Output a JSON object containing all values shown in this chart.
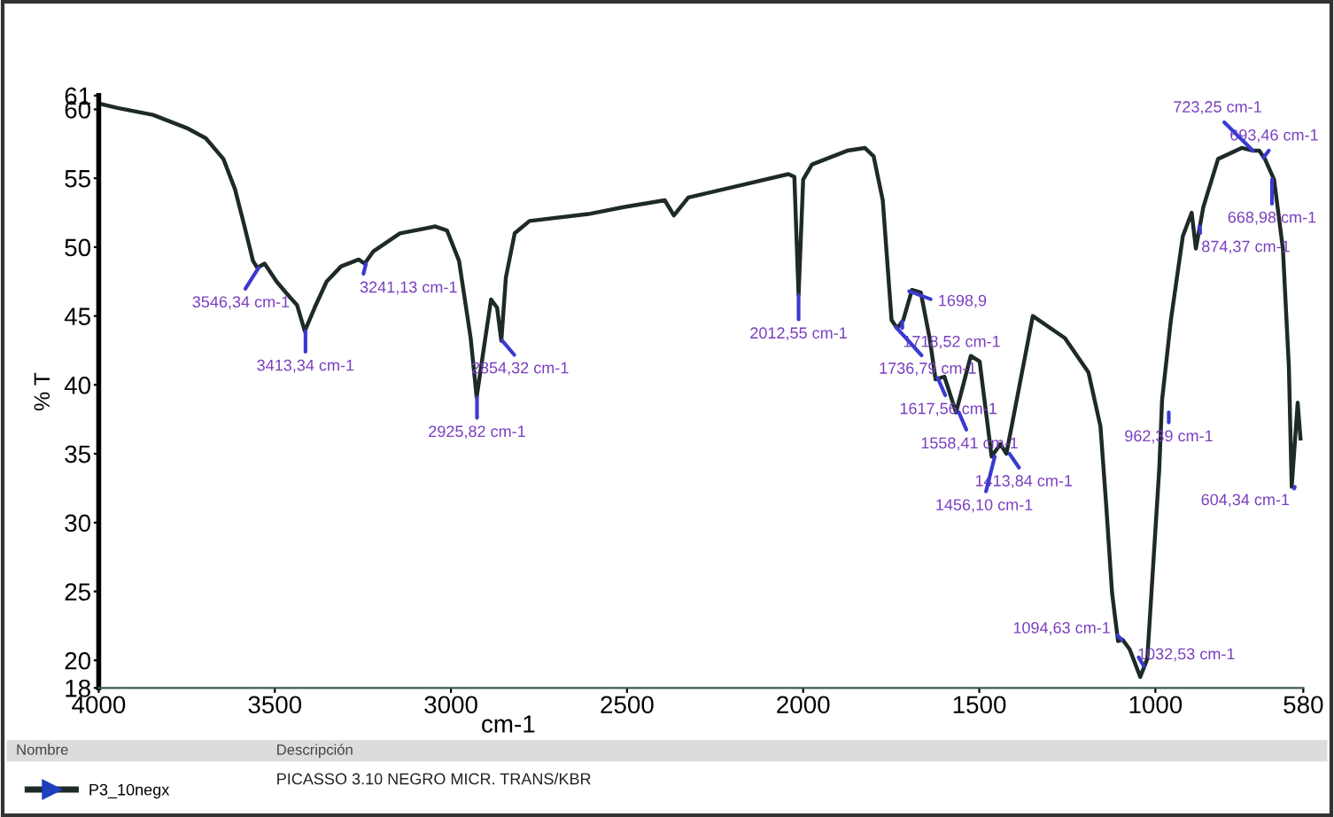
{
  "chart_data": {
    "type": "line",
    "xlabel": "cm-1",
    "ylabel": "% T",
    "xlim": [
      4000,
      580
    ],
    "ylim": [
      18,
      61
    ],
    "xticks": [
      4000,
      3500,
      3000,
      2500,
      2000,
      1500,
      1000,
      580
    ],
    "yticks": [
      18,
      20,
      25,
      30,
      35,
      40,
      45,
      50,
      55,
      60,
      61
    ],
    "grid": false,
    "legend": "bottom",
    "marker": "none",
    "line_style": "solid",
    "series": [
      {
        "name": "P3_10negx",
        "color": "#1e2a28",
        "x": [
          3996,
          3946,
          3846,
          3746,
          3696,
          3646,
          3613,
          3587,
          3562,
          3550,
          3529,
          3495,
          3462,
          3437,
          3415,
          3387,
          3353,
          3312,
          3262,
          3245,
          3220,
          3145,
          3044,
          3011,
          2977,
          2944,
          2927,
          2907,
          2886,
          2869,
          2857,
          2844,
          2819,
          2777,
          2610,
          2510,
          2393,
          2367,
          2326,
          2175,
          2042,
          2025,
          2013,
          2000,
          1975,
          1875,
          1825,
          1800,
          1774,
          1749,
          1733,
          1716,
          1691,
          1666,
          1641,
          1624,
          1599,
          1566,
          1524,
          1499,
          1465,
          1440,
          1423,
          1348,
          1257,
          1190,
          1156,
          1140,
          1123,
          1106,
          1093,
          1073,
          1043,
          1023,
          1006,
          989,
          981,
          956,
          922,
          897,
          885,
          864,
          822,
          755,
          722,
          705,
          689,
          663,
          638,
          621,
          613,
          596,
          588
        ],
        "values": [
          60.4,
          60.1,
          59.6,
          58.6,
          57.9,
          56.4,
          54.2,
          51.6,
          49.0,
          48.5,
          48.8,
          47.5,
          46.5,
          45.8,
          43.9,
          45.6,
          47.5,
          48.6,
          49.1,
          48.8,
          49.7,
          51.0,
          51.5,
          51.2,
          49.0,
          43.4,
          39.1,
          42.6,
          46.2,
          45.6,
          43.2,
          47.8,
          51.0,
          51.9,
          52.4,
          52.9,
          53.4,
          52.3,
          53.6,
          54.5,
          55.3,
          55.1,
          46.5,
          54.9,
          56.0,
          57.0,
          57.2,
          56.6,
          53.4,
          44.7,
          44.1,
          44.7,
          46.9,
          46.7,
          43.4,
          40.4,
          40.6,
          38.0,
          42.1,
          41.7,
          34.8,
          35.7,
          35.0,
          45.0,
          43.4,
          40.9,
          37.0,
          31.4,
          24.9,
          21.4,
          21.5,
          20.8,
          18.8,
          20.1,
          27.0,
          33.9,
          38.9,
          44.7,
          50.8,
          52.5,
          49.9,
          52.9,
          56.4,
          57.2,
          57.0,
          57.0,
          56.4,
          54.9,
          49.9,
          41.3,
          32.6,
          38.7,
          36.1
        ]
      }
    ],
    "annotations": [
      {
        "text": "3546,34 cm-1",
        "x": 3546,
        "y": 48.5
      },
      {
        "text": "3413,34 cm-1",
        "x": 3413,
        "y": 43.9
      },
      {
        "text": "3241,13 cm-1",
        "x": 3241,
        "y": 48.8
      },
      {
        "text": "2925,82 cm-1",
        "x": 2926,
        "y": 39.1
      },
      {
        "text": "2854,32 cm-1",
        "x": 2854,
        "y": 43.2
      },
      {
        "text": "2012,55 cm-1",
        "x": 2013,
        "y": 46.5
      },
      {
        "text": "1718,52 cm-1",
        "x": 1719,
        "y": 44.6
      },
      {
        "text": "1736,79 cm-1",
        "x": 1737,
        "y": 44.2
      },
      {
        "text": "1698,9",
        "x": 1699,
        "y": 46.8
      },
      {
        "text": "1617,56 cm-1",
        "x": 1618,
        "y": 40.5
      },
      {
        "text": "1558,41 cm-1",
        "x": 1558,
        "y": 38.0
      },
      {
        "text": "1413,84 cm-1",
        "x": 1414,
        "y": 35.0
      },
      {
        "text": "1456,10 cm-1",
        "x": 1456,
        "y": 34.8
      },
      {
        "text": "1032,53 cm-1",
        "x": 1033,
        "y": 19.6
      },
      {
        "text": "1094,63 cm-1",
        "x": 1095,
        "y": 21.5
      },
      {
        "text": "962,39 cm-1",
        "x": 962,
        "y": 38.0
      },
      {
        "text": "874,37 cm-1",
        "x": 874,
        "y": 51.5
      },
      {
        "text": "693,46 cm-1",
        "x": 693,
        "y": 56.5
      },
      {
        "text": "723,25 cm-1",
        "x": 723,
        "y": 57.0
      },
      {
        "text": "668,98 cm-1",
        "x": 669,
        "y": 54.9
      },
      {
        "text": "604,34 cm-1",
        "x": 604,
        "y": 32.6
      },
      "Nombre",
      "Descripción",
      "PICASSO 3.10 NEGRO MICR. TRANS/KBR"
    ]
  }
}
